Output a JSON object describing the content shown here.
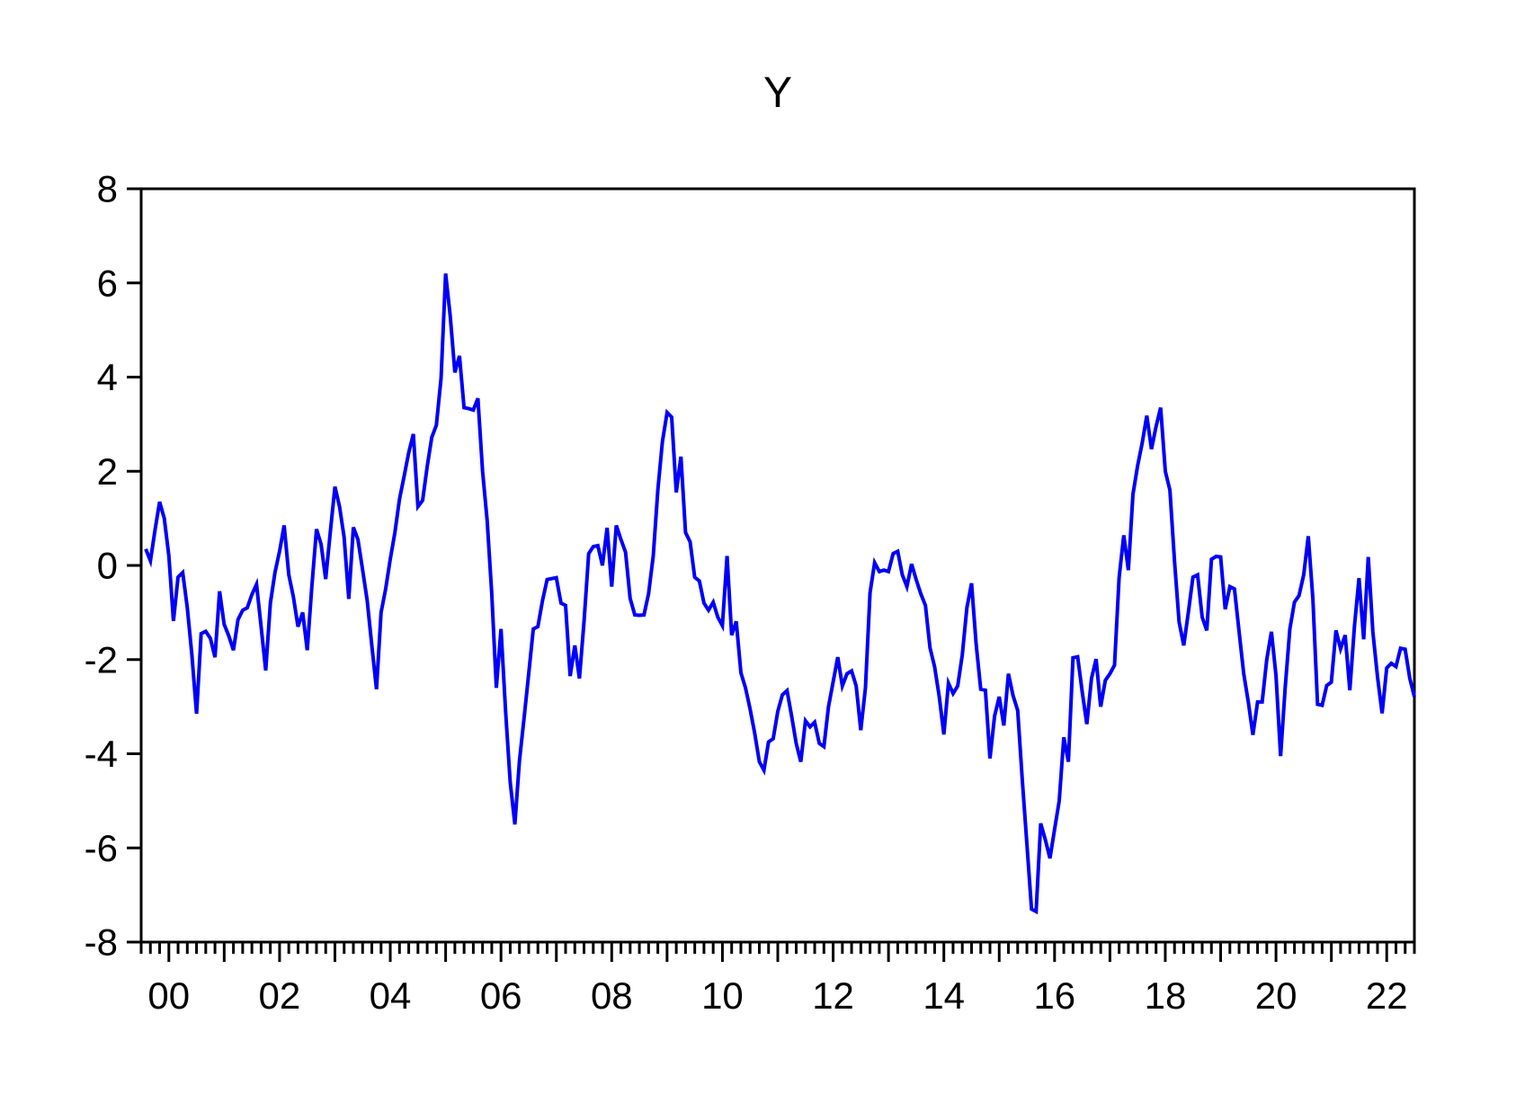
{
  "page": {
    "background_color": "#ffffff"
  },
  "chart_data": {
    "type": "line",
    "title": "Y",
    "series_name": "Y",
    "line_color": "#0000fa",
    "axis_color": "#000000",
    "grid": "off",
    "legend": "none",
    "x_axis": {
      "min": 1999.5,
      "max": 2022.5,
      "minor_tick_step_years": 0.166667,
      "year_tick_step": 1,
      "labeled_years": [
        2000,
        2002,
        2004,
        2006,
        2008,
        2010,
        2012,
        2014,
        2016,
        2018,
        2020,
        2022
      ],
      "tick_labels": [
        "00",
        "02",
        "04",
        "06",
        "08",
        "10",
        "12",
        "14",
        "16",
        "18",
        "20",
        "22"
      ]
    },
    "y_axis": {
      "min": -8,
      "max": 8,
      "ticks": [
        8,
        6,
        4,
        2,
        0,
        -2,
        -4,
        -6,
        -8
      ],
      "tick_labels": [
        "8",
        "6",
        "4",
        "2",
        "0",
        "-2",
        "-4",
        "-6",
        "-8"
      ]
    },
    "x_start": 1999.583333,
    "x_step_years": 0.083333,
    "values": [
      0.35,
      0.1,
      0.75,
      1.35,
      1.0,
      0.2,
      -1.18,
      -0.25,
      -0.15,
      -0.9,
      -1.9,
      -3.15,
      -1.45,
      -1.4,
      -1.55,
      -1.95,
      -0.55,
      -1.25,
      -1.5,
      -1.8,
      -1.15,
      -0.95,
      -0.9,
      -0.62,
      -0.4,
      -1.3,
      -2.23,
      -0.8,
      -0.15,
      0.3,
      0.85,
      -0.2,
      -0.67,
      -1.3,
      -1.0,
      -1.8,
      -0.45,
      0.77,
      0.45,
      -0.29,
      0.7,
      1.67,
      1.25,
      0.6,
      -0.71,
      0.81,
      0.55,
      -0.1,
      -0.75,
      -1.7,
      -2.63,
      -1.0,
      -0.5,
      0.13,
      0.7,
      1.41,
      1.89,
      2.4,
      2.79,
      1.25,
      1.38,
      2.1,
      2.72,
      2.98,
      3.97,
      6.2,
      5.3,
      4.1,
      4.45,
      3.35,
      3.33,
      3.3,
      3.55,
      2.0,
      0.95,
      -0.6,
      -2.6,
      -1.35,
      -3.1,
      -4.6,
      -5.5,
      -4.15,
      -3.25,
      -2.3,
      -1.35,
      -1.3,
      -0.75,
      -0.3,
      -0.28,
      -0.26,
      -0.8,
      -0.85,
      -2.35,
      -1.7,
      -2.4,
      -1.2,
      0.25,
      0.4,
      0.42,
      0.0,
      0.8,
      -0.45,
      0.85,
      0.55,
      0.28,
      -0.7,
      -1.05,
      -1.06,
      -1.05,
      -0.6,
      0.2,
      1.6,
      2.63,
      3.25,
      3.15,
      1.55,
      2.31,
      0.7,
      0.5,
      -0.25,
      -0.33,
      -0.8,
      -0.95,
      -0.78,
      -1.1,
      -1.28,
      0.2,
      -1.48,
      -1.19,
      -2.28,
      -2.6,
      -3.05,
      -3.56,
      -4.17,
      -4.35,
      -3.75,
      -3.68,
      -3.1,
      -2.75,
      -2.66,
      -3.2,
      -3.78,
      -4.17,
      -3.3,
      -3.43,
      -3.33,
      -3.78,
      -3.85,
      -3.0,
      -2.47,
      -1.95,
      -2.56,
      -2.3,
      -2.24,
      -2.56,
      -3.5,
      -2.6,
      -0.58,
      0.06,
      -0.13,
      -0.1,
      -0.13,
      0.25,
      0.3,
      -0.2,
      -0.45,
      0.03,
      -0.3,
      -0.6,
      -0.85,
      -1.75,
      -2.15,
      -2.79,
      -3.59,
      -2.5,
      -2.72,
      -2.56,
      -1.9,
      -0.9,
      -0.38,
      -1.67,
      -2.63,
      -2.65,
      -4.1,
      -3.2,
      -2.79,
      -3.4,
      -2.3,
      -2.76,
      -3.08,
      -4.55,
      -5.9,
      -7.3,
      -7.35,
      -5.48,
      -5.83,
      -6.22,
      -5.61,
      -5.0,
      -3.65,
      -4.17,
      -1.96,
      -1.94,
      -2.69,
      -3.37,
      -2.4,
      -1.99,
      -3.0,
      -2.44,
      -2.3,
      -2.12,
      -0.26,
      0.64,
      -0.1,
      1.51,
      2.12,
      2.6,
      3.18,
      2.47,
      2.95,
      3.35,
      2.0,
      1.6,
      0.1,
      -1.2,
      -1.7,
      -1.0,
      -0.25,
      -0.2,
      -1.1,
      -1.38,
      0.13,
      0.19,
      0.18,
      -0.93,
      -0.45,
      -0.5,
      -1.4,
      -2.3,
      -2.9,
      -3.6,
      -2.9,
      -2.9,
      -2.0,
      -1.41,
      -2.34,
      -4.05,
      -2.6,
      -1.35,
      -0.78,
      -0.64,
      -0.2,
      0.62,
      -0.71,
      -2.95,
      -2.97,
      -2.55,
      -2.48,
      -1.38,
      -1.77,
      -1.48,
      -2.65,
      -1.3,
      -0.27,
      -1.57,
      0.18,
      -1.41,
      -2.37,
      -3.14,
      -2.18,
      -2.08,
      -2.15,
      -1.76,
      -1.78,
      -2.4,
      -2.79
    ]
  }
}
